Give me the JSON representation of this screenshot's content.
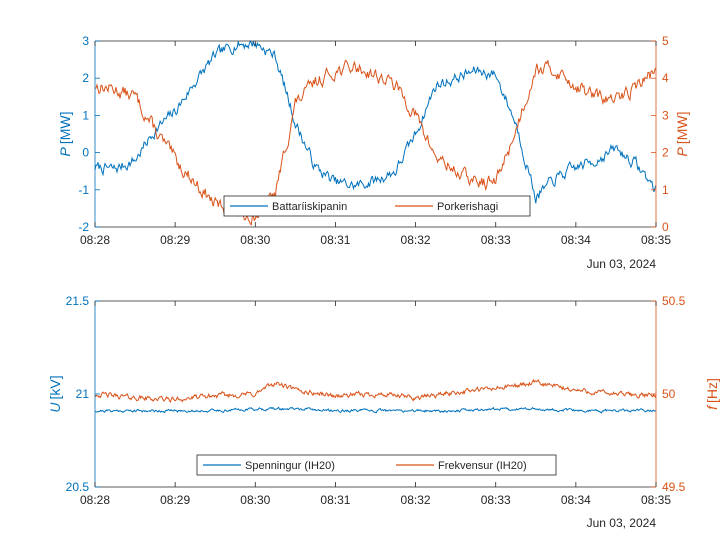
{
  "colors": {
    "left_axis": "#0072BD",
    "right_axis": "#D95319",
    "axis_dark": "#262626",
    "legend_border": "#262626"
  },
  "date_label": "Jun 03, 2024",
  "chart_data": [
    {
      "type": "line",
      "title": "",
      "x_ticks": [
        "08:28",
        "08:29",
        "08:30",
        "08:31",
        "08:32",
        "08:33",
        "08:34",
        "08:35"
      ],
      "xlim": [
        "08:28",
        "08:35"
      ],
      "left_axis": {
        "label_symbol": "P",
        "label_unit": "[MW]",
        "ylim": [
          -2,
          3
        ],
        "ticks": [
          -2,
          -1,
          0,
          1,
          2,
          3
        ]
      },
      "right_axis": {
        "label_symbol": "P",
        "label_unit": "[MW]",
        "ylim": [
          0,
          5
        ],
        "ticks": [
          0,
          1,
          2,
          3,
          4,
          5
        ]
      },
      "legend": {
        "placement": "bottom-center",
        "entries": [
          "Battaríiskipanin",
          "Porkerishagi"
        ]
      },
      "series": [
        {
          "name": "Battaríiskipanin",
          "axis": "left",
          "x": [
            "08:28:00",
            "08:28:15",
            "08:28:30",
            "08:28:45",
            "08:29:00",
            "08:29:15",
            "08:29:30",
            "08:29:45",
            "08:30:00",
            "08:30:15",
            "08:30:30",
            "08:30:45",
            "08:31:00",
            "08:31:15",
            "08:31:30",
            "08:31:45",
            "08:32:00",
            "08:32:15",
            "08:32:30",
            "08:32:45",
            "08:33:00",
            "08:33:15",
            "08:33:30",
            "08:33:45",
            "08:34:00",
            "08:34:15",
            "08:34:30",
            "08:34:45",
            "08:35:00"
          ],
          "y": [
            -0.4,
            -0.45,
            -0.2,
            0.6,
            1.1,
            1.9,
            2.6,
            2.9,
            2.95,
            2.6,
            0.8,
            -0.4,
            -0.8,
            -0.9,
            -0.75,
            -0.5,
            0.5,
            1.8,
            2.0,
            2.2,
            2.1,
            0.8,
            -1.2,
            -0.7,
            -0.4,
            -0.2,
            0.1,
            -0.3,
            -1.0
          ]
        },
        {
          "name": "Porkerishagi",
          "axis": "right",
          "x": [
            "08:28:00",
            "08:28:15",
            "08:28:30",
            "08:28:45",
            "08:29:00",
            "08:29:15",
            "08:29:30",
            "08:29:45",
            "08:30:00",
            "08:30:15",
            "08:30:30",
            "08:30:45",
            "08:31:00",
            "08:31:15",
            "08:31:30",
            "08:31:45",
            "08:32:00",
            "08:32:15",
            "08:32:30",
            "08:32:45",
            "08:33:00",
            "08:33:15",
            "08:33:30",
            "08:33:45",
            "08:34:00",
            "08:34:15",
            "08:34:30",
            "08:34:45",
            "08:35:00"
          ],
          "y": [
            3.8,
            3.7,
            3.5,
            2.6,
            1.8,
            1.2,
            0.6,
            0.4,
            0.3,
            0.9,
            3.3,
            3.9,
            4.2,
            4.3,
            4.1,
            3.8,
            3.0,
            1.9,
            1.5,
            1.2,
            1.2,
            2.6,
            4.3,
            4.2,
            3.8,
            3.5,
            3.4,
            3.8,
            4.2
          ]
        }
      ]
    },
    {
      "type": "line",
      "title": "",
      "x_ticks": [
        "08:28",
        "08:29",
        "08:30",
        "08:31",
        "08:32",
        "08:33",
        "08:34",
        "08:35"
      ],
      "xlim": [
        "08:28",
        "08:35"
      ],
      "left_axis": {
        "label_symbol": "U",
        "label_unit": "[kV]",
        "ylim": [
          20.5,
          21.5
        ],
        "ticks": [
          20.5,
          21,
          21.5
        ]
      },
      "right_axis": {
        "label_symbol": "f",
        "label_unit": "[Hz]",
        "ylim": [
          49.5,
          50.5
        ],
        "ticks": [
          49.5,
          50,
          50.5
        ]
      },
      "legend": {
        "placement": "bottom-center",
        "entries": [
          "Spenningur (IH20)",
          "Frekvensur (IH20)"
        ]
      },
      "series": [
        {
          "name": "Spenningur (IH20)",
          "axis": "left",
          "x": [
            "08:28:00",
            "08:28:30",
            "08:29:00",
            "08:29:30",
            "08:30:00",
            "08:30:30",
            "08:31:00",
            "08:31:30",
            "08:32:00",
            "08:32:30",
            "08:33:00",
            "08:33:30",
            "08:34:00",
            "08:34:30",
            "08:35:00"
          ],
          "y": [
            20.91,
            20.91,
            20.91,
            20.91,
            20.92,
            20.92,
            20.91,
            20.91,
            20.91,
            20.91,
            20.92,
            20.92,
            20.91,
            20.91,
            20.91
          ]
        },
        {
          "name": "Frekvensur (IH20)",
          "axis": "right",
          "x": [
            "08:28:00",
            "08:28:30",
            "08:29:00",
            "08:29:30",
            "08:30:00",
            "08:30:15",
            "08:30:30",
            "08:31:00",
            "08:31:30",
            "08:32:00",
            "08:32:30",
            "08:33:00",
            "08:33:30",
            "08:34:00",
            "08:34:30",
            "08:35:00"
          ],
          "y": [
            50.0,
            49.98,
            49.97,
            49.99,
            50.0,
            50.06,
            50.02,
            49.99,
            50.0,
            49.98,
            50.01,
            50.03,
            50.06,
            50.02,
            50.0,
            49.99
          ]
        }
      ]
    }
  ]
}
